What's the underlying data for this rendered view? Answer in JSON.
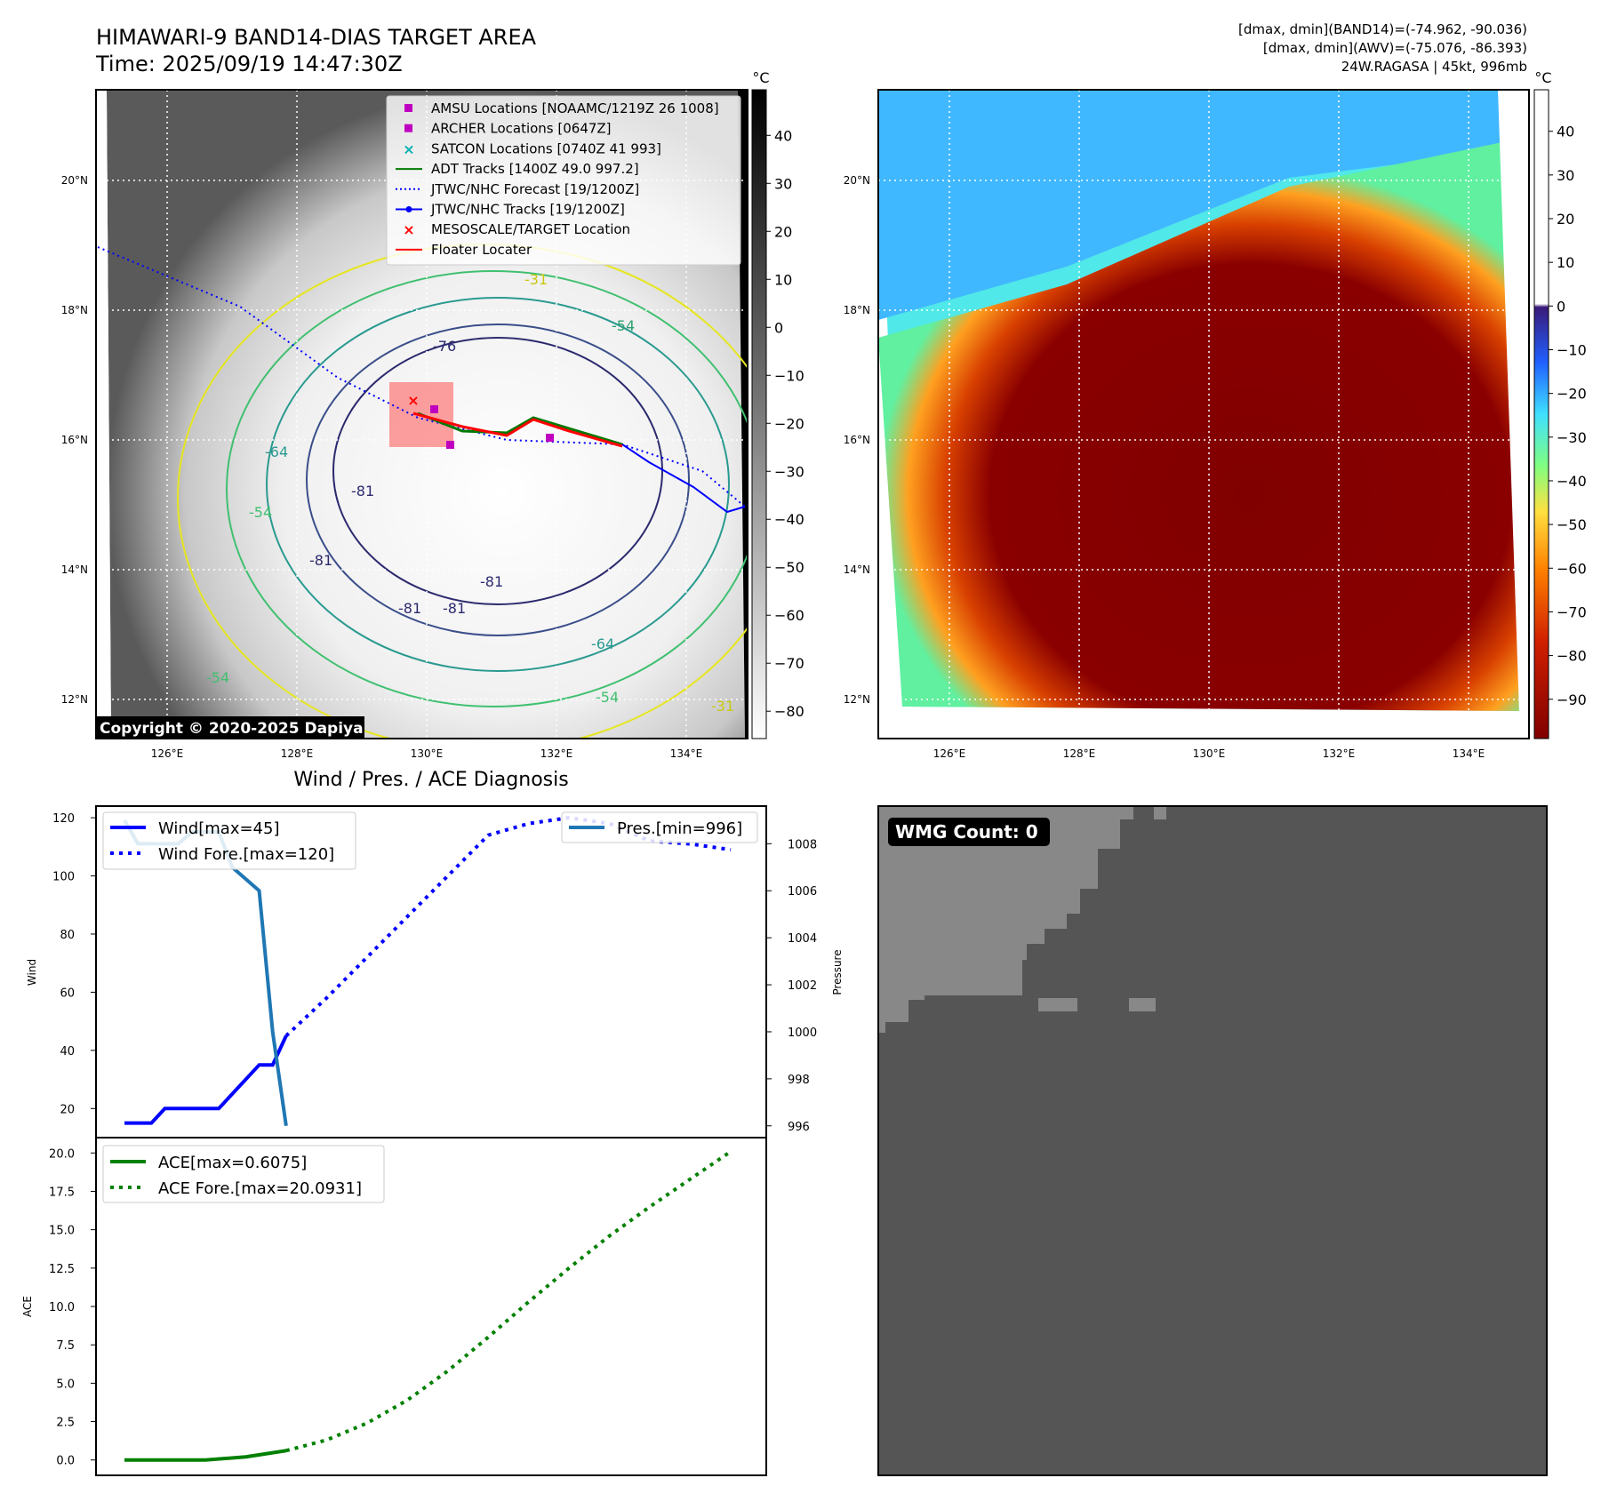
{
  "header": {
    "title_line1": "HIMAWARI-9 BAND14-DIAS TARGET AREA",
    "title_line2": "Time: 2025/09/19 14:47:30Z",
    "info_line1": "[dmax, dmin](BAND14)=(-74.962, -90.036)",
    "info_line2": "[dmax, dmin](AWV)=(-75.076, -86.393)",
    "info_line3": "24W.RAGASA | 45kt, 996mb"
  },
  "map_left": {
    "legend": [
      {
        "label": "AMSU Locations [NOAAMC/1219Z 26 1008]",
        "marker": "square",
        "color": "#c000c0"
      },
      {
        "label": "ARCHER Locations [0647Z]",
        "marker": "square",
        "color": "#c000c0"
      },
      {
        "label": "SATCON Locations [0740Z 41 993]",
        "marker": "x",
        "color": "#00b0b0"
      },
      {
        "label": "ADT Tracks [1400Z 49.0 997.2]",
        "marker": "line",
        "color": "#007a00"
      },
      {
        "label": "JTWC/NHC Forecast [19/1200Z]",
        "marker": "dotted",
        "color": "#0000ff"
      },
      {
        "label": "JTWC/NHC Tracks [19/1200Z]",
        "marker": "line-dot",
        "color": "#0000ff"
      },
      {
        "label": "MESOSCALE/TARGET Location",
        "marker": "x",
        "color": "#ff0000"
      },
      {
        "label": "Floater Locater",
        "marker": "line",
        "color": "#ff0000"
      }
    ],
    "contour_labels": [
      "-31",
      "-54",
      "-76",
      "-64",
      "-81",
      "-81",
      "-81",
      "-81",
      "-81",
      "-64",
      "-54",
      "-54",
      "-31",
      "-54"
    ],
    "copyright": "Copyright © 2020-2025 Dapiya",
    "colorbar_unit": "°C",
    "colorbar_ticks": [
      "40",
      "30",
      "20",
      "10",
      "0",
      "−10",
      "−20",
      "−30",
      "−40",
      "−50",
      "−60",
      "−70",
      "−80"
    ],
    "colorbar_values": [
      40,
      30,
      20,
      10,
      0,
      -10,
      -20,
      -30,
      -40,
      -50,
      -60,
      -70,
      -80
    ]
  },
  "map_right": {
    "colorbar_unit": "°C",
    "colorbar_ticks": [
      "40",
      "30",
      "20",
      "10",
      "0",
      "−10",
      "−20",
      "−30",
      "−40",
      "−50",
      "−60",
      "−70",
      "−80",
      "−90"
    ],
    "colorbar_values": [
      40,
      30,
      20,
      10,
      0,
      -10,
      -20,
      -30,
      -40,
      -50,
      -60,
      -70,
      -80,
      -90
    ]
  },
  "map_axes": {
    "lat_labels": [
      "20°N",
      "18°N",
      "16°N",
      "14°N",
      "12°N"
    ],
    "lat_values": [
      20,
      18,
      16,
      14,
      12
    ],
    "lon_labels": [
      "126°E",
      "128°E",
      "130°E",
      "132°E",
      "134°E"
    ],
    "lon_values": [
      126,
      128,
      130,
      132,
      134
    ]
  },
  "chart_data": [
    {
      "type": "line",
      "title": "Wind / Pres. / ACE Diagnosis",
      "ylabel": "Wind",
      "ylabel_right": "Pressure",
      "ylim": [
        10,
        124
      ],
      "ylim_right": [
        995.5,
        1009.6
      ],
      "yticks": [
        20,
        40,
        60,
        80,
        100,
        120
      ],
      "yticks_right": [
        996,
        998,
        1000,
        1002,
        1004,
        1006,
        1008
      ],
      "series": [
        {
          "name": "Wind[max=45]",
          "style": "solid",
          "color": "#0000ff",
          "x": [
            0,
            1,
            2,
            3,
            4,
            5,
            6,
            7,
            8,
            9,
            10,
            11,
            12
          ],
          "values": [
            15,
            15,
            15,
            20,
            20,
            20,
            20,
            20,
            25,
            30,
            35,
            35,
            45
          ]
        },
        {
          "name": "Wind Fore.[max=120]",
          "style": "dotted",
          "color": "#0000ff",
          "x": [
            12,
            15,
            18,
            21,
            24,
            27,
            30,
            33,
            36,
            39,
            42,
            45
          ],
          "values": [
            45,
            58,
            72,
            86,
            100,
            114,
            118,
            120,
            118,
            112,
            111,
            109
          ]
        },
        {
          "name": "Pres.[min=996]",
          "style": "solid",
          "color": "#1f77b4",
          "axis": "right",
          "x": [
            0,
            1,
            2,
            3,
            4,
            5,
            6,
            7,
            8,
            9,
            10,
            11,
            12
          ],
          "values": [
            1009,
            1008,
            1008,
            1008,
            1008,
            1008.5,
            1008.5,
            1008.5,
            1007,
            1006.5,
            1006,
            1000,
            996
          ]
        }
      ],
      "legend_left": [
        "Wind[max=45]",
        "Wind Fore.[max=120]"
      ],
      "legend_right": [
        "Pres.[min=996]"
      ]
    },
    {
      "type": "line",
      "title": "",
      "ylabel": "ACE",
      "ylim": [
        -1,
        21
      ],
      "yticks": [
        0.0,
        2.5,
        5.0,
        7.5,
        10.0,
        12.5,
        15.0,
        17.5,
        20.0
      ],
      "ytick_labels": [
        "0.0",
        "2.5",
        "5.0",
        "7.5",
        "10.0",
        "12.5",
        "15.0",
        "17.5",
        "20.0"
      ],
      "series": [
        {
          "name": "ACE[max=0.6075]",
          "style": "solid",
          "color": "#008000",
          "x": [
            0,
            3,
            6,
            9,
            12
          ],
          "values": [
            0,
            0,
            0,
            0.2,
            0.6075
          ]
        },
        {
          "name": "ACE Fore.[max=20.0931]",
          "style": "dotted",
          "color": "#008000",
          "x": [
            12,
            15,
            18,
            21,
            24,
            27,
            30,
            33,
            36,
            39,
            42,
            45
          ],
          "values": [
            0.6075,
            1.3,
            2.4,
            3.9,
            5.8,
            8.0,
            10.3,
            12.5,
            14.6,
            16.5,
            18.3,
            20.0931
          ]
        }
      ]
    }
  ],
  "wmg": {
    "count_label": "WMG Count: 0"
  }
}
